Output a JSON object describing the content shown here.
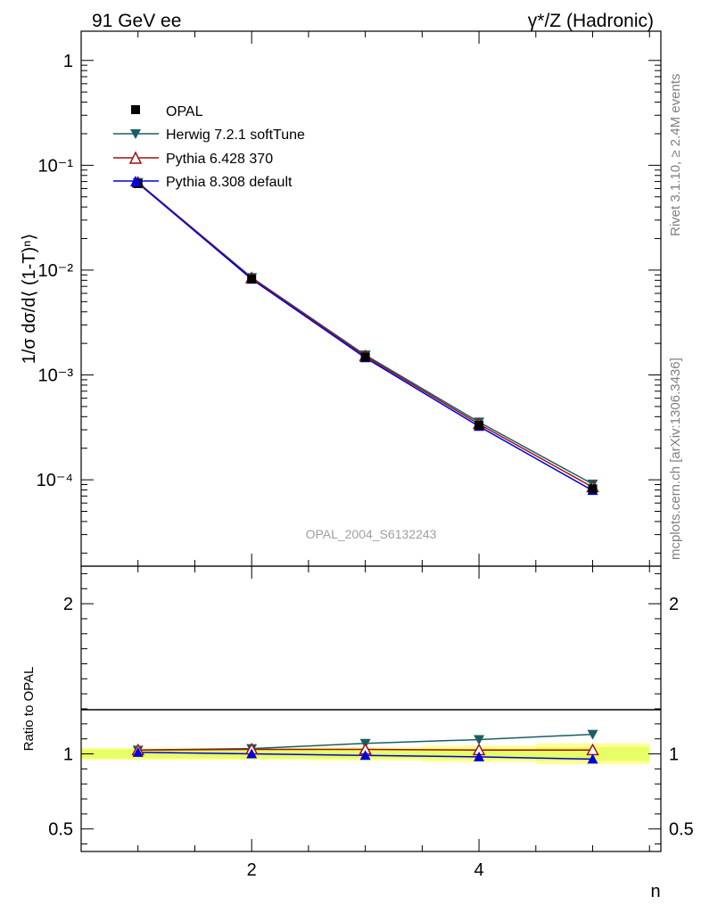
{
  "header": {
    "left": "91 GeV ee",
    "right": "γ*/Z (Hadronic)"
  },
  "side_text": {
    "rivet": "Rivet 3.1.10, ≥ 2.4M events",
    "source": "mcplots.cern.ch [arXiv:1306.3436]"
  },
  "watermark": "OPAL_2004_S6132243",
  "colors": {
    "opal": "#000000",
    "herwig": "#1a5e63",
    "pythia6": "#a01010",
    "pythia8": "#0000dd",
    "band_inner": "#e6ff66",
    "band_outer": "#ffff99"
  },
  "chart_data": [
    {
      "type": "line",
      "panel": "main",
      "ylabel": "1/σ dσ/d⟨ (1-T)ⁿ⟩",
      "yscale": "log",
      "ylim": [
        1.5e-05,
        1.9
      ],
      "xlim": [
        0.5,
        5.6
      ],
      "y_tick_labels": [
        "1",
        "10⁻¹",
        "10⁻²",
        "10⁻³",
        "10⁻⁴"
      ],
      "legend_position": "top-left",
      "x": [
        1,
        2,
        3,
        4,
        5
      ],
      "series": [
        {
          "name": "OPAL",
          "marker": "square",
          "values": [
            0.0668,
            0.0082,
            0.00148,
            0.00033,
            8.2e-05
          ]
        },
        {
          "name": "Herwig 7.2.1 softTune",
          "marker": "triangle-down",
          "values": [
            0.0685,
            0.0085,
            0.00155,
            0.000355,
            9.1e-05
          ]
        },
        {
          "name": "Pythia 6.428 370",
          "marker": "triangle-up-open",
          "values": [
            0.0685,
            0.0084,
            0.00151,
            0.00034,
            8.5e-05
          ]
        },
        {
          "name": "Pythia 8.308 default",
          "marker": "triangle-up",
          "values": [
            0.0675,
            0.0082,
            0.00146,
            0.000323,
            7.9e-05
          ]
        }
      ]
    },
    {
      "type": "line",
      "panel": "ratio",
      "ylabel": "Ratio to OPAL",
      "xlabel": "n",
      "ylim": [
        0.35,
        2.25
      ],
      "xlim": [
        0.5,
        5.6
      ],
      "x_tick_labels": [
        "2",
        "4"
      ],
      "y_tick_labels": [
        "0.5",
        "1",
        "2"
      ],
      "x": [
        1,
        2,
        3,
        4,
        5
      ],
      "series": [
        {
          "name": "Herwig 7.2.1 softTune",
          "values": [
            1.025,
            1.035,
            1.07,
            1.095,
            1.13
          ]
        },
        {
          "name": "Pythia 6.428 370",
          "values": [
            1.025,
            1.03,
            1.03,
            1.025,
            1.025
          ]
        },
        {
          "name": "Pythia 8.308 default",
          "values": [
            1.01,
            1.0,
            0.99,
            0.98,
            0.965
          ]
        }
      ],
      "band": {
        "x": [
          0.5,
          1.5,
          2.5,
          3.5,
          4.5,
          5.5
        ],
        "inner": [
          0.03,
          0.03,
          0.03,
          0.035,
          0.045,
          0.055
        ],
        "outer": [
          0.04,
          0.04,
          0.045,
          0.055,
          0.07,
          0.085
        ]
      }
    }
  ]
}
